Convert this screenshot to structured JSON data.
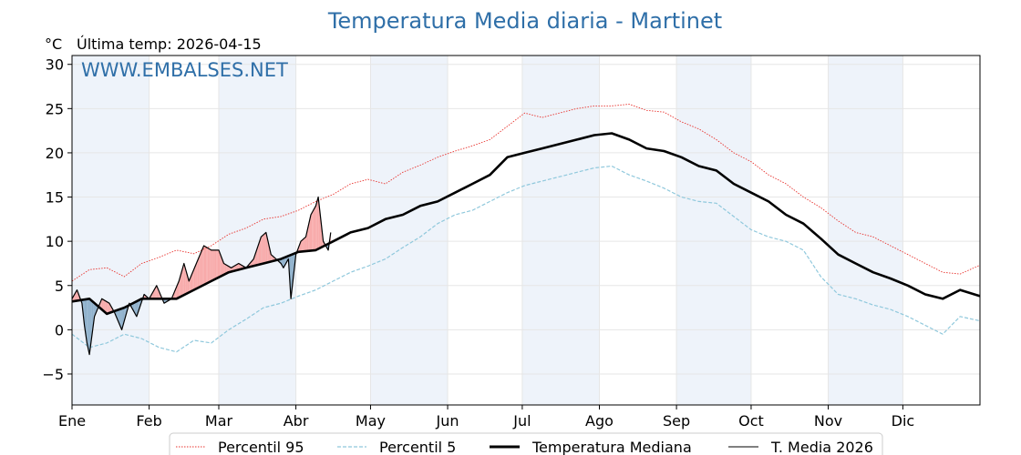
{
  "chart_data": {
    "type": "line",
    "title": "Temperatura Media diaria - Martinet",
    "unit_label": "°C",
    "last_temp_label": "Última temp: 2026-04-15",
    "watermark": "WWW.EMBALSES.NET",
    "xlabel": "",
    "ylabel": "",
    "ylim": [
      -8.5,
      31
    ],
    "y_ticks": [
      -5,
      0,
      5,
      10,
      15,
      20,
      25,
      30
    ],
    "y_tick_labels": [
      "−5",
      "0",
      "5",
      "10",
      "15",
      "20",
      "25",
      "30"
    ],
    "x_day_range": [
      1,
      366
    ],
    "month_ticks": [
      {
        "label": "Ene",
        "day": 1
      },
      {
        "label": "Feb",
        "day": 32
      },
      {
        "label": "Mar",
        "day": 60
      },
      {
        "label": "Abr",
        "day": 91
      },
      {
        "label": "May",
        "day": 121
      },
      {
        "label": "Jun",
        "day": 152
      },
      {
        "label": "Jul",
        "day": 182
      },
      {
        "label": "Ago",
        "day": 213
      },
      {
        "label": "Sep",
        "day": 244
      },
      {
        "label": "Oct",
        "day": 274
      },
      {
        "label": "Nov",
        "day": 305
      },
      {
        "label": "Dic",
        "day": 335
      }
    ],
    "grid": true,
    "legend_position": "bottom-center",
    "series": [
      {
        "name": "Percentil 95",
        "style": "dotted",
        "color": "#e8332e",
        "points": [
          [
            1,
            5.5
          ],
          [
            8,
            6.8
          ],
          [
            15,
            7
          ],
          [
            22,
            6
          ],
          [
            29,
            7.5
          ],
          [
            36,
            8.2
          ],
          [
            43,
            9
          ],
          [
            50,
            8.6
          ],
          [
            57,
            9.5
          ],
          [
            64,
            10.8
          ],
          [
            71,
            11.5
          ],
          [
            78,
            12.5
          ],
          [
            85,
            12.8
          ],
          [
            92,
            13.5
          ],
          [
            99,
            14.5
          ],
          [
            106,
            15.3
          ],
          [
            113,
            16.5
          ],
          [
            120,
            17
          ],
          [
            127,
            16.5
          ],
          [
            134,
            17.8
          ],
          [
            141,
            18.6
          ],
          [
            148,
            19.5
          ],
          [
            155,
            20.2
          ],
          [
            162,
            20.8
          ],
          [
            169,
            21.5
          ],
          [
            176,
            23
          ],
          [
            183,
            24.5
          ],
          [
            190,
            24
          ],
          [
            197,
            24.5
          ],
          [
            204,
            25
          ],
          [
            211,
            25.3
          ],
          [
            218,
            25.3
          ],
          [
            225,
            25.5
          ],
          [
            232,
            24.8
          ],
          [
            239,
            24.6
          ],
          [
            246,
            23.5
          ],
          [
            253,
            22.7
          ],
          [
            260,
            21.5
          ],
          [
            267,
            20
          ],
          [
            274,
            19
          ],
          [
            281,
            17.5
          ],
          [
            288,
            16.5
          ],
          [
            295,
            15
          ],
          [
            302,
            13.8
          ],
          [
            309,
            12.3
          ],
          [
            316,
            11
          ],
          [
            323,
            10.5
          ],
          [
            330,
            9.5
          ],
          [
            337,
            8.5
          ],
          [
            344,
            7.5
          ],
          [
            351,
            6.5
          ],
          [
            358,
            6.3
          ],
          [
            366,
            7.3
          ]
        ]
      },
      {
        "name": "Percentil 5",
        "style": "dashed",
        "color": "#8fc8dc",
        "points": [
          [
            1,
            -0.5
          ],
          [
            8,
            -2
          ],
          [
            15,
            -1.5
          ],
          [
            22,
            -0.5
          ],
          [
            29,
            -1
          ],
          [
            36,
            -2
          ],
          [
            43,
            -2.5
          ],
          [
            50,
            -1.2
          ],
          [
            57,
            -1.5
          ],
          [
            64,
            0
          ],
          [
            71,
            1.2
          ],
          [
            78,
            2.5
          ],
          [
            85,
            3
          ],
          [
            92,
            3.8
          ],
          [
            99,
            4.5
          ],
          [
            106,
            5.5
          ],
          [
            113,
            6.5
          ],
          [
            120,
            7.2
          ],
          [
            127,
            8
          ],
          [
            134,
            9.3
          ],
          [
            141,
            10.5
          ],
          [
            148,
            12
          ],
          [
            155,
            13
          ],
          [
            162,
            13.5
          ],
          [
            169,
            14.5
          ],
          [
            176,
            15.5
          ],
          [
            183,
            16.3
          ],
          [
            190,
            16.8
          ],
          [
            197,
            17.3
          ],
          [
            204,
            17.8
          ],
          [
            211,
            18.3
          ],
          [
            218,
            18.5
          ],
          [
            225,
            17.5
          ],
          [
            232,
            16.8
          ],
          [
            239,
            16
          ],
          [
            246,
            15
          ],
          [
            253,
            14.5
          ],
          [
            260,
            14.3
          ],
          [
            267,
            12.8
          ],
          [
            274,
            11.3
          ],
          [
            281,
            10.5
          ],
          [
            288,
            10
          ],
          [
            295,
            9
          ],
          [
            302,
            6
          ],
          [
            309,
            4
          ],
          [
            316,
            3.5
          ],
          [
            323,
            2.8
          ],
          [
            330,
            2.3
          ],
          [
            337,
            1.5
          ],
          [
            344,
            0.5
          ],
          [
            351,
            -0.5
          ],
          [
            358,
            1.5
          ],
          [
            366,
            1
          ]
        ]
      },
      {
        "name": "Temperatura Mediana",
        "style": "solid-bold",
        "color": "#000000",
        "points": [
          [
            1,
            3.2
          ],
          [
            8,
            3.5
          ],
          [
            15,
            1.8
          ],
          [
            22,
            2.5
          ],
          [
            29,
            3.5
          ],
          [
            36,
            3.5
          ],
          [
            43,
            3.5
          ],
          [
            50,
            4.5
          ],
          [
            57,
            5.5
          ],
          [
            64,
            6.5
          ],
          [
            71,
            7
          ],
          [
            78,
            7.5
          ],
          [
            85,
            8
          ],
          [
            92,
            8.8
          ],
          [
            99,
            9
          ],
          [
            106,
            10
          ],
          [
            113,
            11
          ],
          [
            120,
            11.5
          ],
          [
            127,
            12.5
          ],
          [
            134,
            13
          ],
          [
            141,
            14
          ],
          [
            148,
            14.5
          ],
          [
            155,
            15.5
          ],
          [
            162,
            16.5
          ],
          [
            169,
            17.5
          ],
          [
            176,
            19.5
          ],
          [
            183,
            20
          ],
          [
            190,
            20.5
          ],
          [
            197,
            21
          ],
          [
            204,
            21.5
          ],
          [
            211,
            22
          ],
          [
            218,
            22.2
          ],
          [
            225,
            21.5
          ],
          [
            232,
            20.5
          ],
          [
            239,
            20.2
          ],
          [
            246,
            19.5
          ],
          [
            253,
            18.5
          ],
          [
            260,
            18
          ],
          [
            267,
            16.5
          ],
          [
            274,
            15.5
          ],
          [
            281,
            14.5
          ],
          [
            288,
            13
          ],
          [
            295,
            12
          ],
          [
            302,
            10.3
          ],
          [
            309,
            8.5
          ],
          [
            316,
            7.5
          ],
          [
            323,
            6.5
          ],
          [
            330,
            5.8
          ],
          [
            337,
            5
          ],
          [
            344,
            4
          ],
          [
            351,
            3.5
          ],
          [
            358,
            4.5
          ],
          [
            366,
            3.8
          ]
        ]
      },
      {
        "name": "T. Media 2026",
        "style": "solid-thin",
        "color": "#000000",
        "points": [
          [
            1,
            3.5
          ],
          [
            3,
            4.5
          ],
          [
            5,
            3
          ],
          [
            6,
            0.5
          ],
          [
            7,
            -1.5
          ],
          [
            8,
            -2.8
          ],
          [
            10,
            1.5
          ],
          [
            13,
            3.5
          ],
          [
            16,
            3
          ],
          [
            18,
            2
          ],
          [
            21,
            0
          ],
          [
            24,
            3
          ],
          [
            27,
            1.5
          ],
          [
            30,
            4
          ],
          [
            32,
            3.5
          ],
          [
            35,
            5
          ],
          [
            38,
            3
          ],
          [
            41,
            3.5
          ],
          [
            44,
            5.5
          ],
          [
            46,
            7.5
          ],
          [
            48,
            5.5
          ],
          [
            51,
            7.5
          ],
          [
            54,
            9.5
          ],
          [
            57,
            9
          ],
          [
            60,
            9
          ],
          [
            62,
            7.5
          ],
          [
            65,
            7
          ],
          [
            68,
            7.5
          ],
          [
            71,
            7
          ],
          [
            74,
            8
          ],
          [
            77,
            10.5
          ],
          [
            79,
            11
          ],
          [
            81,
            8.5
          ],
          [
            83,
            8
          ],
          [
            85,
            7.5
          ],
          [
            86,
            7
          ],
          [
            88,
            8
          ],
          [
            89,
            3.5
          ],
          [
            91,
            8.5
          ],
          [
            93,
            10
          ],
          [
            95,
            10.5
          ],
          [
            97,
            13
          ],
          [
            99,
            14
          ],
          [
            100,
            15
          ],
          [
            102,
            10
          ],
          [
            104,
            9
          ],
          [
            105,
            11
          ]
        ]
      }
    ],
    "shading": {
      "warm_fill": "#f8aaaa",
      "cold_fill": "#8fb1cc",
      "month_band_fill": "#eef3fa"
    }
  }
}
